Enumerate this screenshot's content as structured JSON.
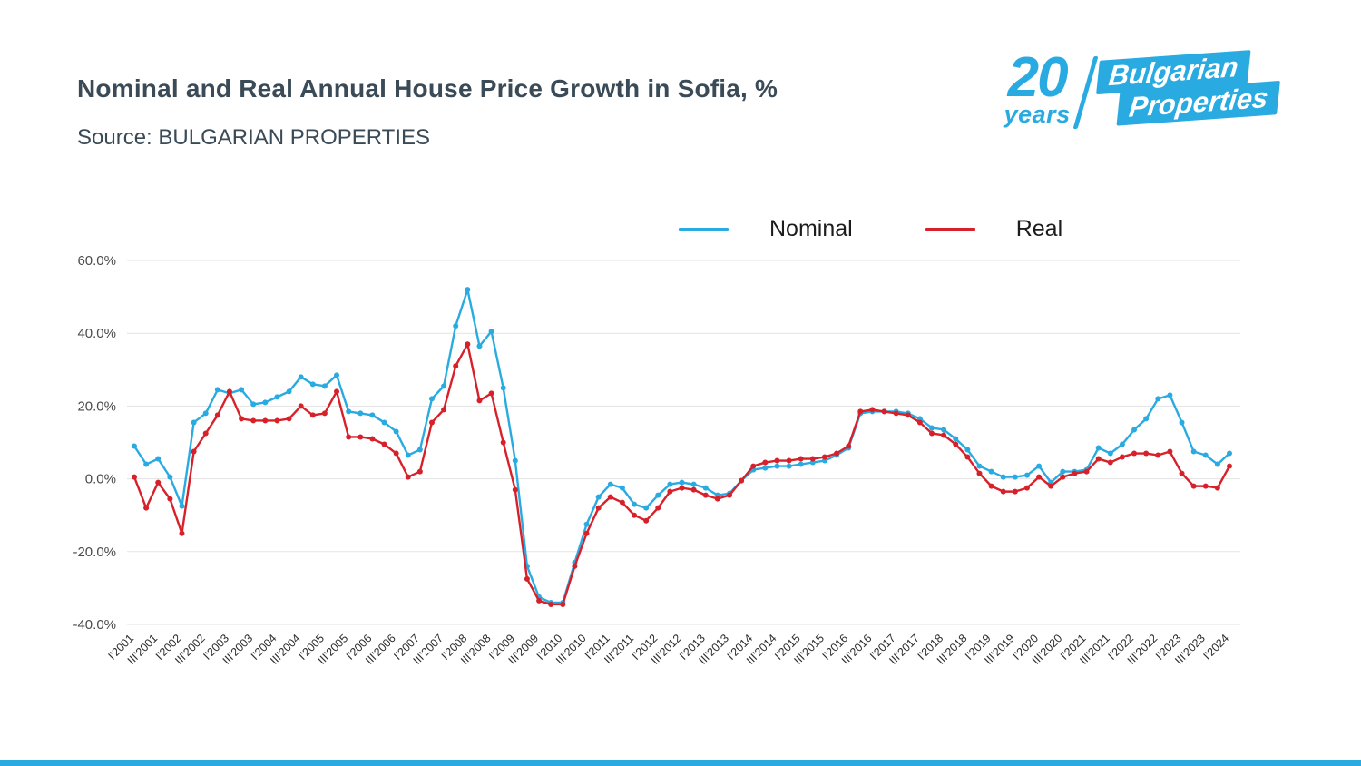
{
  "header": {
    "title": "Nominal and Real Annual House Price Growth in Sofia, %",
    "source": "Source: BULGARIAN PROPERTIES"
  },
  "logo": {
    "number": "20",
    "years": "years",
    "brand_line1": "Bulgarian",
    "brand_line2": "Properties",
    "color": "#29ABE2"
  },
  "legend": [
    {
      "label": "Nominal",
      "color": "#29ABE2"
    },
    {
      "label": "Real",
      "color": "#D7212A"
    }
  ],
  "footer": {
    "bar_color": "#29ABE2"
  },
  "chart_data": {
    "type": "line",
    "title": "Nominal and Real Annual House Price Growth in Sofia, %",
    "xlabel": "",
    "ylabel": "",
    "ylim": [
      -40,
      60
    ],
    "yticks": [
      60,
      40,
      20,
      0,
      -20,
      -40
    ],
    "ytick_suffix": "%",
    "grid": "horizontal",
    "legend_position": "top",
    "x_tick_every": 2,
    "x": [
      "I'2001",
      "II'2001",
      "III'2001",
      "IV'2001",
      "I'2002",
      "II'2002",
      "III'2002",
      "IV'2002",
      "I'2003",
      "II'2003",
      "III'2003",
      "IV'2003",
      "I'2004",
      "II'2004",
      "III'2004",
      "IV'2004",
      "I'2005",
      "II'2005",
      "III'2005",
      "IV'2005",
      "I'2006",
      "II'2006",
      "III'2006",
      "IV'2006",
      "I'2007",
      "II'2007",
      "III'2007",
      "IV'2007",
      "I'2008",
      "II'2008",
      "III'2008",
      "IV'2008",
      "I'2009",
      "II'2009",
      "III'2009",
      "IV'2009",
      "I'2010",
      "II'2010",
      "III'2010",
      "IV'2010",
      "I'2011",
      "II'2011",
      "III'2011",
      "IV'2011",
      "I'2012",
      "II'2012",
      "III'2012",
      "IV'2012",
      "I'2013",
      "II'2013",
      "III'2013",
      "IV'2013",
      "I'2014",
      "II'2014",
      "III'2014",
      "IV'2014",
      "I'2015",
      "II'2015",
      "III'2015",
      "IV'2015",
      "I'2016",
      "II'2016",
      "III'2016",
      "IV'2016",
      "I'2017",
      "II'2017",
      "III'2017",
      "IV'2017",
      "I'2018",
      "II'2018",
      "III'2018",
      "IV'2018",
      "I'2019",
      "II'2019",
      "III'2019",
      "IV'2019",
      "I'2020",
      "II'2020",
      "III'2020",
      "IV'2020",
      "I'2021",
      "II'2021",
      "III'2021",
      "IV'2021",
      "I'2022",
      "II'2022",
      "III'2022",
      "IV'2022",
      "I'2023",
      "II'2023",
      "III'2023",
      "IV'2023",
      "I'2024"
    ],
    "series": [
      {
        "name": "Nominal",
        "color": "#29ABE2",
        "values": [
          9,
          4,
          5.5,
          0.5,
          -7.5,
          15.5,
          18,
          24.5,
          23.5,
          24.5,
          20.5,
          21,
          22.5,
          24,
          28,
          26,
          25.5,
          28.5,
          18.5,
          18,
          17.5,
          15.5,
          13,
          6.5,
          8,
          22,
          25.5,
          42,
          52,
          36.5,
          40.5,
          25,
          5,
          -24,
          -32.5,
          -34,
          -34,
          -23,
          -12.5,
          -5,
          -1.5,
          -2.5,
          -7,
          -8,
          -4.5,
          -1.5,
          -1,
          -1.5,
          -2.5,
          -4.5,
          -4,
          -0.5,
          2.5,
          3,
          3.5,
          3.5,
          4,
          4.5,
          5,
          6.5,
          8.5,
          18,
          18.5,
          18.5,
          18.5,
          18,
          16.5,
          14,
          13.5,
          11,
          8,
          3.5,
          2,
          0.5,
          0.5,
          1,
          3.5,
          -1,
          2,
          2,
          2.5,
          8.5,
          7,
          9.5,
          13.5,
          16.5,
          22,
          23,
          15.5,
          7.5,
          6.5,
          4,
          7
        ]
      },
      {
        "name": "Real",
        "color": "#D7212A",
        "values": [
          0.5,
          -8,
          -1,
          -5.5,
          -15,
          7.5,
          12.5,
          17.5,
          24,
          16.5,
          16,
          16,
          16,
          16.5,
          20,
          17.5,
          18,
          24,
          11.5,
          11.5,
          11,
          9.5,
          7,
          0.5,
          2,
          15.5,
          19,
          31,
          37,
          21.5,
          23.5,
          10,
          -3,
          -27.5,
          -33.5,
          -34.5,
          -34.5,
          -24,
          -15,
          -8,
          -5,
          -6.5,
          -10,
          -11.5,
          -8,
          -3.5,
          -2.5,
          -3,
          -4.5,
          -5.5,
          -4.5,
          -0.5,
          3.5,
          4.5,
          5,
          5,
          5.5,
          5.5,
          6,
          7,
          9,
          18.5,
          19,
          18.5,
          18,
          17.5,
          15.5,
          12.5,
          12,
          9.5,
          6,
          1.5,
          -2,
          -3.5,
          -3.5,
          -2.5,
          0.5,
          -2,
          0.5,
          1.5,
          2,
          5.5,
          4.5,
          6,
          7,
          7,
          6.5,
          7.5,
          1.5,
          -2,
          -2,
          -2.5,
          3.5
        ]
      }
    ]
  }
}
